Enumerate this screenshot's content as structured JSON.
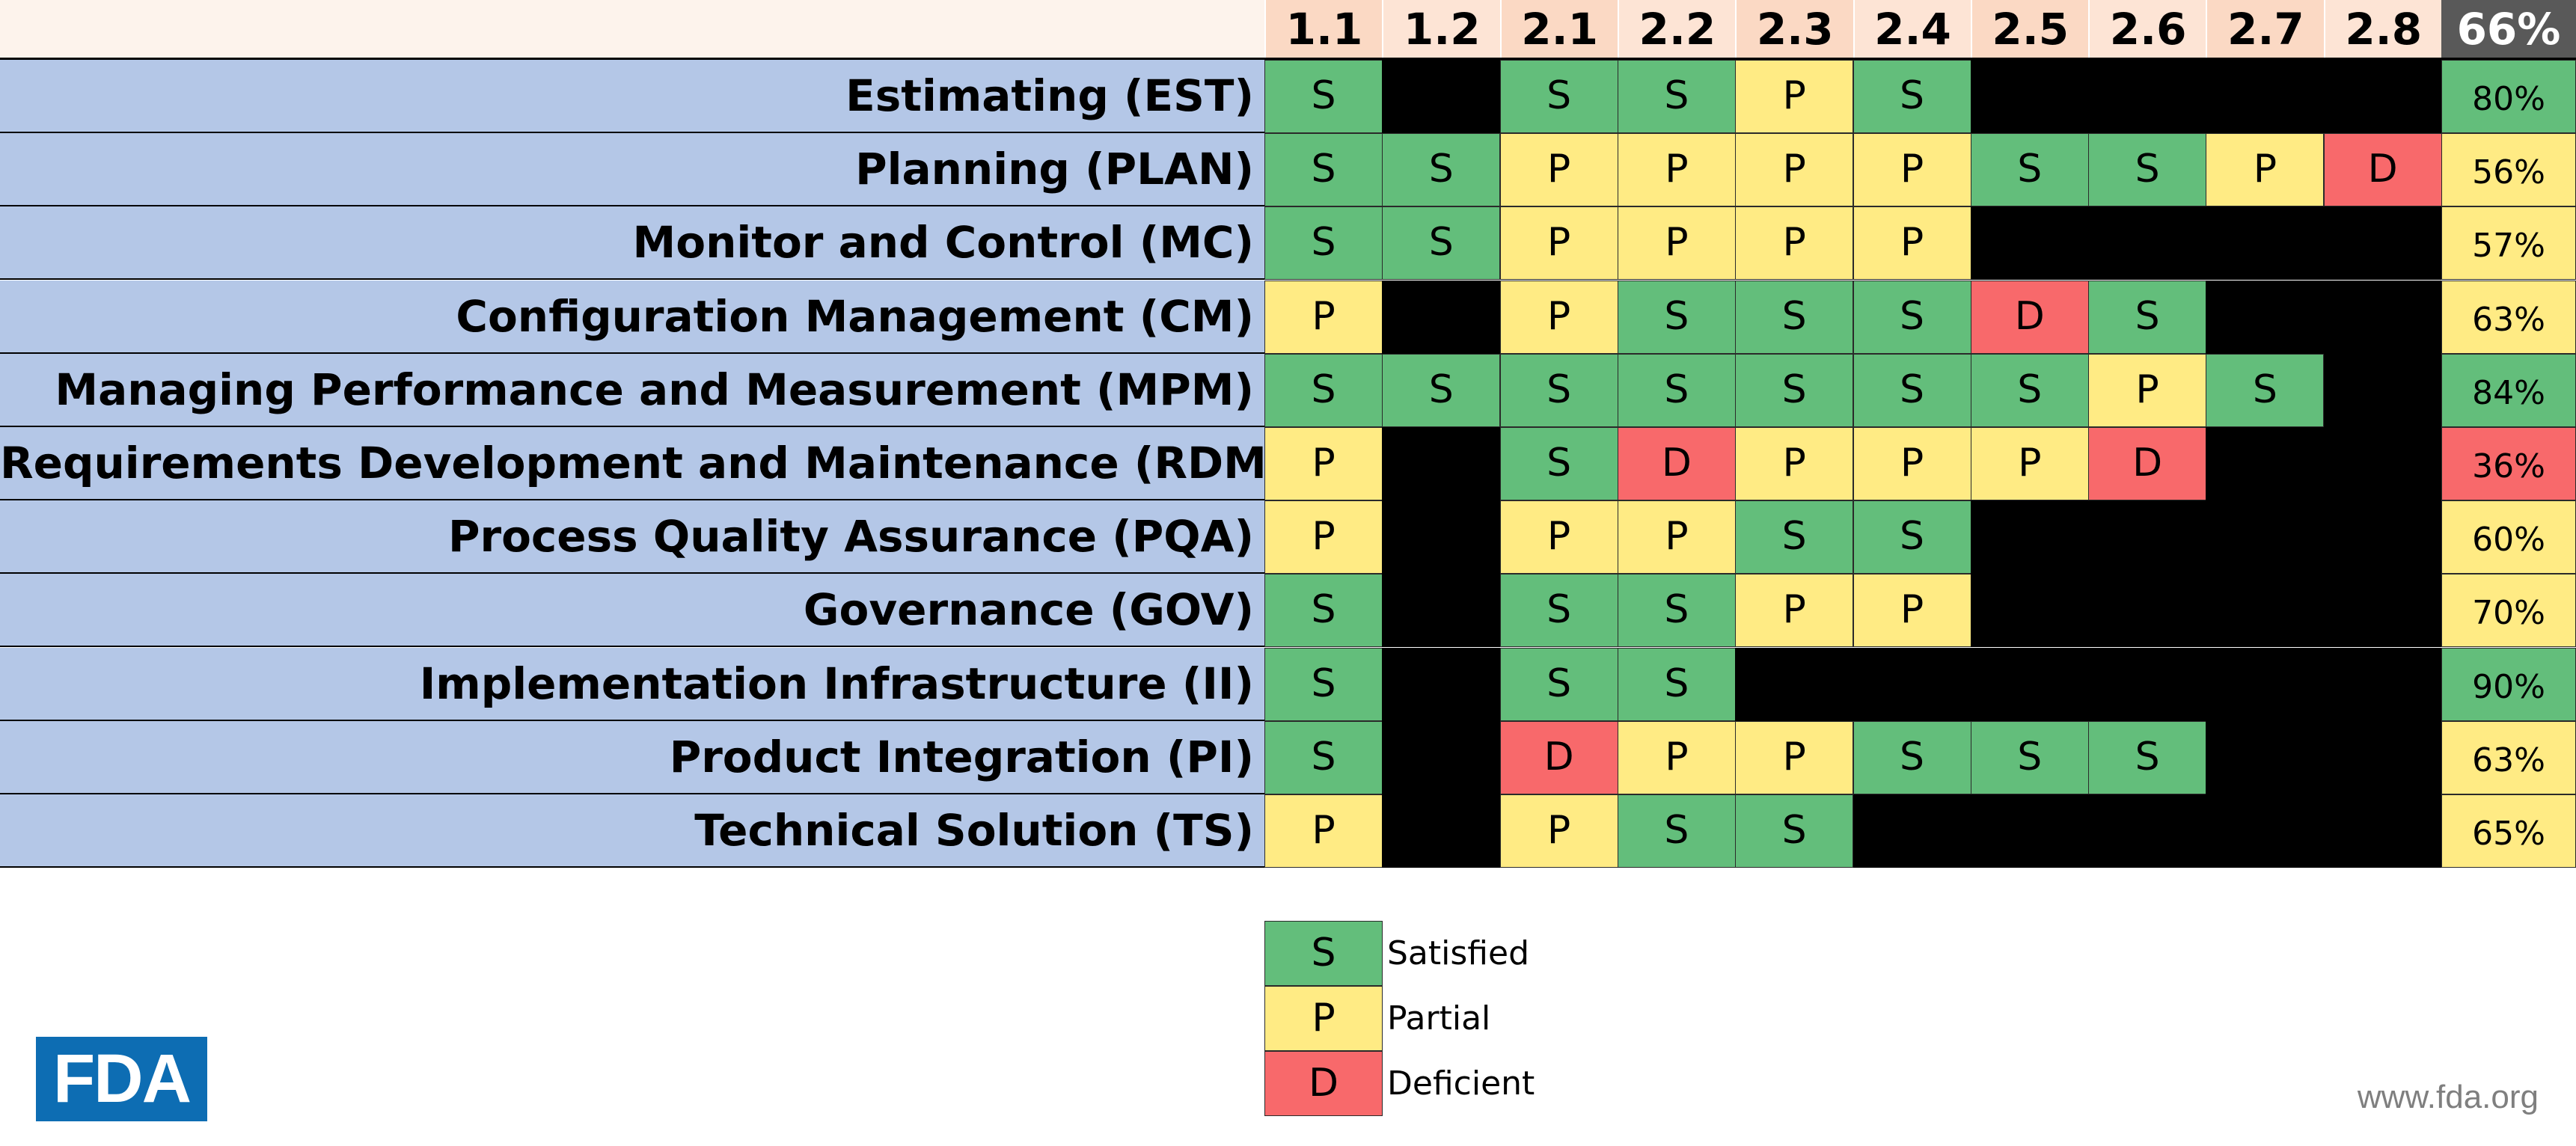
{
  "columns": [
    "1.1",
    "1.2",
    "2.1",
    "2.2",
    "2.3",
    "2.4",
    "2.5",
    "2.6",
    "2.7",
    "2.8"
  ],
  "overall_percent": "66%",
  "rows": [
    {
      "label": "Estimating (EST)",
      "cells": [
        "S",
        "",
        "S",
        "S",
        "P",
        "S",
        "",
        "",
        "",
        ""
      ],
      "percent": "80%",
      "percent_status": "green"
    },
    {
      "label": "Planning (PLAN)",
      "cells": [
        "S",
        "S",
        "P",
        "P",
        "P",
        "P",
        "S",
        "S",
        "P",
        "D"
      ],
      "percent": "56%",
      "percent_status": "yellow"
    },
    {
      "label": "Monitor and Control (MC)",
      "cells": [
        "S",
        "S",
        "P",
        "P",
        "P",
        "P",
        "",
        "",
        "",
        ""
      ],
      "percent": "57%",
      "percent_status": "yellow"
    },
    {
      "label": "Configuration Management (CM)",
      "cells": [
        "P",
        "",
        "P",
        "S",
        "S",
        "S",
        "D",
        "S",
        "",
        ""
      ],
      "percent": "63%",
      "percent_status": "yellow"
    },
    {
      "label": "Managing Performance and Measurement (MPM)",
      "cells": [
        "S",
        "S",
        "S",
        "S",
        "S",
        "S",
        "S",
        "P",
        "S",
        ""
      ],
      "percent": "84%",
      "percent_status": "green"
    },
    {
      "label": "Requirements Development and Maintenance (RDM)",
      "cells": [
        "P",
        "",
        "S",
        "D",
        "P",
        "P",
        "P",
        "D",
        "",
        ""
      ],
      "percent": "36%",
      "percent_status": "red"
    },
    {
      "label": "Process Quality Assurance (PQA)",
      "cells": [
        "P",
        "",
        "P",
        "P",
        "S",
        "S",
        "",
        "",
        "",
        ""
      ],
      "percent": "60%",
      "percent_status": "yellow"
    },
    {
      "label": "Governance (GOV)",
      "cells": [
        "S",
        "",
        "S",
        "S",
        "P",
        "P",
        "",
        "",
        "",
        ""
      ],
      "percent": "70%",
      "percent_status": "yellow"
    },
    {
      "label": "Implementation Infrastructure (II)",
      "cells": [
        "S",
        "",
        "S",
        "S",
        "",
        "",
        "",
        "",
        "",
        ""
      ],
      "percent": "90%",
      "percent_status": "green"
    },
    {
      "label": "Product Integration (PI)",
      "cells": [
        "S",
        "",
        "D",
        "P",
        "P",
        "S",
        "S",
        "S",
        "",
        ""
      ],
      "percent": "63%",
      "percent_status": "yellow"
    },
    {
      "label": "Technical Solution (TS)",
      "cells": [
        "P",
        "",
        "P",
        "S",
        "S",
        "",
        "",
        "",
        "",
        ""
      ],
      "percent": "65%",
      "percent_status": "yellow"
    }
  ],
  "legend": [
    {
      "code": "S",
      "label": "Satisfied"
    },
    {
      "code": "P",
      "label": "Partial"
    },
    {
      "code": "D",
      "label": "Deficient"
    }
  ],
  "colors": {
    "satisfied": "#63be7b",
    "partial": "#ffeb84",
    "deficient": "#f8696b",
    "not_applicable": "#000000",
    "label_bg": "#b4c7e7"
  },
  "logo_text": "FDA",
  "website": "www.fda.org"
}
